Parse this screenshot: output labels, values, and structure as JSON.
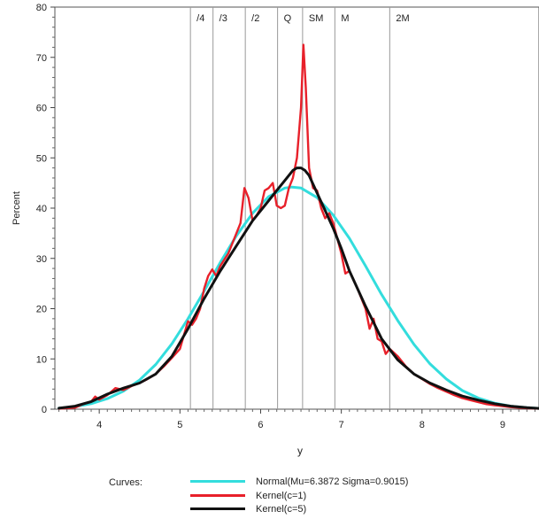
{
  "chart_data": {
    "type": "line",
    "xlabel": "y",
    "ylabel": "Percent",
    "xlim": [
      3.45,
      9.45
    ],
    "ylim": [
      0,
      80
    ],
    "x_ticks": [
      4,
      5,
      6,
      7,
      8,
      9
    ],
    "y_ticks": [
      0,
      10,
      20,
      30,
      40,
      50,
      60,
      70,
      80
    ],
    "reference_lines": [
      {
        "label": "/4",
        "x": 5.13
      },
      {
        "label": "/3",
        "x": 5.41
      },
      {
        "label": "/2",
        "x": 5.81
      },
      {
        "label": "Q",
        "x": 6.21
      },
      {
        "label": "SM",
        "x": 6.52
      },
      {
        "label": "M",
        "x": 6.92
      },
      {
        "label": "2M",
        "x": 7.6
      }
    ],
    "legend_title": "Curves:",
    "legend_position": "bottom",
    "series": [
      {
        "name": "Normal(Mu=6.3872 Sigma=0.9015)",
        "color": "#33dddd",
        "x": [
          3.5,
          3.7,
          3.9,
          4.1,
          4.3,
          4.5,
          4.7,
          4.9,
          5.1,
          5.3,
          5.5,
          5.7,
          5.9,
          6.1,
          6.3,
          6.39,
          6.5,
          6.7,
          6.9,
          7.1,
          7.3,
          7.5,
          7.7,
          7.9,
          8.1,
          8.3,
          8.5,
          8.7,
          8.9,
          9.1,
          9.3,
          9.45
        ],
        "values": [
          0.2,
          0.5,
          1.1,
          2.1,
          3.6,
          5.8,
          8.9,
          13,
          18,
          23.5,
          29.2,
          34.5,
          39,
          42.3,
          44,
          44.2,
          44,
          42.1,
          38.6,
          34,
          28.5,
          22.8,
          17.6,
          12.9,
          9,
          6,
          3.7,
          2.2,
          1.2,
          0.6,
          0.3,
          0.15
        ]
      },
      {
        "name": "Kernel(c=1)",
        "color": "#e8202a",
        "x": [
          3.5,
          3.7,
          3.8,
          3.9,
          3.95,
          4.0,
          4.1,
          4.2,
          4.3,
          4.4,
          4.5,
          4.6,
          4.7,
          4.8,
          4.9,
          5.0,
          5.1,
          5.15,
          5.2,
          5.25,
          5.3,
          5.35,
          5.4,
          5.45,
          5.5,
          5.6,
          5.7,
          5.75,
          5.8,
          5.85,
          5.9,
          5.95,
          6.0,
          6.05,
          6.1,
          6.15,
          6.2,
          6.25,
          6.3,
          6.35,
          6.4,
          6.45,
          6.5,
          6.53,
          6.56,
          6.6,
          6.65,
          6.7,
          6.75,
          6.8,
          6.85,
          6.9,
          6.95,
          7.0,
          7.05,
          7.1,
          7.2,
          7.3,
          7.35,
          7.4,
          7.45,
          7.5,
          7.55,
          7.6,
          7.7,
          7.8,
          7.9,
          8.0,
          8.1,
          8.2,
          8.3,
          8.4,
          8.5,
          8.6,
          8.7,
          8.8,
          8.9,
          9.0,
          9.1,
          9.2,
          9.3,
          9.45
        ],
        "values": [
          0.1,
          0.3,
          1.0,
          1.5,
          2.5,
          1.9,
          2.8,
          4.2,
          3.8,
          4.6,
          5.2,
          6.0,
          7.0,
          8.5,
          10.2,
          12.0,
          17.5,
          16.8,
          18.0,
          20.0,
          24.0,
          26.5,
          27.8,
          26.5,
          28.5,
          31.0,
          35.0,
          37.0,
          44.0,
          42.0,
          37.5,
          38.5,
          40.0,
          43.5,
          44.0,
          45.0,
          40.5,
          40.0,
          40.5,
          44.0,
          46.0,
          50.0,
          60.0,
          72.5,
          64.0,
          48.0,
          44.0,
          43.5,
          40.0,
          38.0,
          39.0,
          37.0,
          34.0,
          31.0,
          27.0,
          27.5,
          24.0,
          20.0,
          16.0,
          18.0,
          14.0,
          13.5,
          11.0,
          12.0,
          10.5,
          8.5,
          7.0,
          6.0,
          5.0,
          4.2,
          3.5,
          2.8,
          2.2,
          1.8,
          1.4,
          1.0,
          0.8,
          0.6,
          0.4,
          0.3,
          0.2,
          0.1
        ]
      },
      {
        "name": "Kernel(c=5)",
        "color": "#111111",
        "x": [
          3.5,
          3.7,
          3.9,
          4.1,
          4.3,
          4.5,
          4.7,
          4.9,
          5.1,
          5.3,
          5.5,
          5.7,
          5.9,
          6.1,
          6.2,
          6.3,
          6.4,
          6.45,
          6.5,
          6.55,
          6.6,
          6.7,
          6.8,
          6.9,
          7.0,
          7.1,
          7.3,
          7.5,
          7.7,
          7.9,
          8.1,
          8.3,
          8.5,
          8.7,
          8.9,
          9.1,
          9.3,
          9.45
        ],
        "values": [
          0.2,
          0.6,
          1.5,
          3.0,
          4.2,
          5.2,
          7.0,
          10.5,
          16.0,
          22.0,
          27.5,
          32.5,
          37.5,
          41.5,
          43.5,
          45.5,
          47.5,
          48.0,
          48.0,
          47.5,
          46.5,
          43.0,
          39.5,
          36.0,
          32.0,
          27.5,
          20.5,
          14.0,
          9.8,
          7.0,
          5.2,
          3.8,
          2.6,
          1.8,
          1.1,
          0.6,
          0.3,
          0.15
        ]
      }
    ]
  }
}
